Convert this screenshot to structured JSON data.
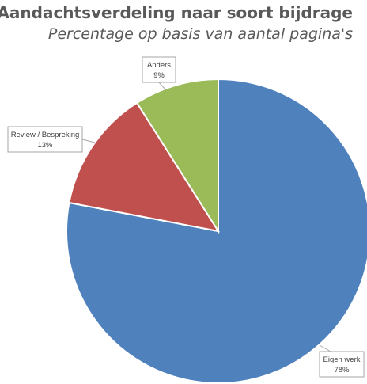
{
  "chart_data": {
    "type": "pie",
    "title": "Aandachtsverdeling naar soort bijdrage",
    "subtitle": "Percentage op basis van aantal pagina's",
    "slices": [
      {
        "label": "Eigen werk",
        "value": 78,
        "value_label": "78%",
        "color": "#4f81bd"
      },
      {
        "label": "Review / Bespreking",
        "value": 13,
        "value_label": "13%",
        "color": "#c0504d"
      },
      {
        "label": "Anders",
        "value": 9,
        "value_label": "9%",
        "color": "#9bbb59"
      }
    ],
    "start_angle": "top",
    "direction": "clockwise",
    "data_labels": "callouts"
  }
}
